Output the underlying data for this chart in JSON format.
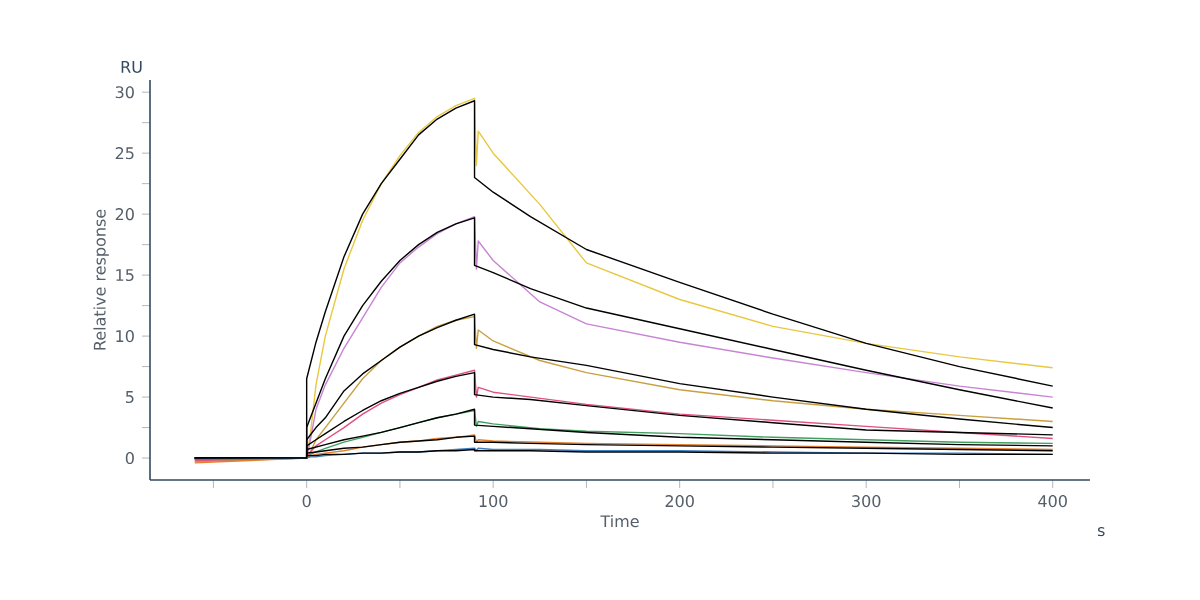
{
  "chart_data": {
    "type": "line",
    "xlabel": "Time",
    "ylabel": "Relative response",
    "annotations": [
      "RU",
      "s"
    ],
    "xlim": [
      -84,
      420
    ],
    "ylim": [
      -1.8,
      31
    ],
    "xticks": [
      {
        "value": -50,
        "label": null
      },
      0,
      {
        "value": 50,
        "label": null
      },
      100,
      {
        "value": 150,
        "label": null
      },
      200,
      {
        "value": 250,
        "label": null
      },
      300,
      {
        "value": 350,
        "label": null
      },
      400
    ],
    "yticks": [
      0,
      {
        "value": 2.5,
        "label": null
      },
      5,
      {
        "value": 7.5,
        "label": null
      },
      10,
      {
        "value": 12.5,
        "label": null
      },
      15,
      {
        "value": 17.5,
        "label": null
      },
      20,
      {
        "value": 22.5,
        "label": null
      },
      25,
      {
        "value": 27.5,
        "label": null
      },
      30
    ],
    "grid": false,
    "marker": "none",
    "line_style": "solid",
    "series": [
      {
        "color": "#e8c840",
        "x": [
          -60,
          0,
          2,
          5,
          10,
          20,
          30,
          40,
          50,
          60,
          70,
          80,
          90,
          91,
          92,
          100,
          125,
          150,
          200,
          250,
          300,
          350,
          400
        ],
        "values": [
          -0.2,
          0,
          2,
          6,
          10,
          15.5,
          19.5,
          22.5,
          24.8,
          26.7,
          28,
          28.9,
          29.5,
          24,
          26.8,
          25,
          20.8,
          16,
          13,
          10.8,
          9.4,
          8.3,
          7.4
        ]
      },
      {
        "color": "#000000",
        "x": [
          -60,
          0,
          0,
          5,
          10,
          20,
          30,
          40,
          50,
          60,
          70,
          80,
          90,
          90,
          100,
          120,
          150,
          200,
          250,
          300,
          350,
          400
        ],
        "values": [
          0,
          0,
          6.5,
          9.5,
          12,
          16.5,
          20,
          22.5,
          24.5,
          26.5,
          27.8,
          28.7,
          29.3,
          23,
          21.8,
          19.8,
          17.1,
          14.4,
          11.8,
          9.4,
          7.5,
          5.9
        ]
      },
      {
        "color": "#c884d4",
        "x": [
          -60,
          0,
          2,
          5,
          10,
          20,
          30,
          40,
          50,
          60,
          70,
          80,
          90,
          91,
          92,
          100,
          125,
          150,
          200,
          250,
          300,
          350,
          400
        ],
        "values": [
          -0.1,
          0,
          1.5,
          4,
          6,
          9,
          11.5,
          14,
          16,
          17.3,
          18.4,
          19.2,
          19.8,
          15.5,
          17.8,
          16.2,
          12.8,
          11,
          9.5,
          8.2,
          7,
          5.9,
          5
        ]
      },
      {
        "color": "#000000",
        "x": [
          -60,
          0,
          0,
          5,
          10,
          20,
          30,
          40,
          50,
          60,
          70,
          80,
          90,
          90,
          100,
          120,
          150,
          200,
          250,
          300,
          350,
          400
        ],
        "values": [
          0,
          0,
          2.5,
          4.5,
          6.5,
          10,
          12.5,
          14.5,
          16.2,
          17.5,
          18.5,
          19.2,
          19.7,
          15.8,
          15.2,
          13.9,
          12.3,
          10.6,
          8.9,
          7.2,
          5.6,
          4.1
        ]
      },
      {
        "color": "#c8a040",
        "x": [
          -60,
          0,
          2,
          5,
          10,
          20,
          30,
          40,
          50,
          60,
          70,
          80,
          90,
          91,
          92,
          100,
          125,
          150,
          200,
          250,
          300,
          350,
          400
        ],
        "values": [
          -0.3,
          0,
          0.5,
          1.5,
          2.5,
          4.5,
          6.5,
          8,
          9.1,
          10,
          10.8,
          11.3,
          11.6,
          9,
          10.5,
          9.6,
          8,
          7,
          5.6,
          4.7,
          4,
          3.5,
          3.0
        ]
      },
      {
        "color": "#000000",
        "x": [
          -60,
          0,
          0,
          5,
          10,
          20,
          30,
          40,
          50,
          60,
          70,
          80,
          90,
          90,
          100,
          120,
          150,
          200,
          250,
          300,
          350,
          400
        ],
        "values": [
          0,
          0,
          1.5,
          2.5,
          3.3,
          5.5,
          6.9,
          8,
          9.1,
          10,
          10.7,
          11.3,
          11.8,
          9.3,
          8.9,
          8.3,
          7.6,
          6.1,
          5.0,
          4.0,
          3.2,
          2.5
        ]
      },
      {
        "color": "#e05080",
        "x": [
          -60,
          0,
          2,
          5,
          10,
          20,
          30,
          40,
          50,
          60,
          70,
          80,
          90,
          91,
          92,
          100,
          125,
          150,
          200,
          250,
          300,
          350,
          400
        ],
        "values": [
          -0.2,
          0,
          0.5,
          1,
          1.5,
          2.5,
          3.6,
          4.5,
          5.2,
          5.8,
          6.4,
          6.8,
          7.2,
          5,
          5.8,
          5.4,
          4.9,
          4.4,
          3.6,
          3.1,
          2.6,
          2.1,
          1.6
        ]
      },
      {
        "color": "#000000",
        "x": [
          -60,
          0,
          0,
          5,
          10,
          20,
          30,
          40,
          50,
          60,
          70,
          80,
          90,
          90,
          100,
          120,
          150,
          200,
          250,
          300,
          350,
          400
        ],
        "values": [
          0,
          0,
          1,
          1.5,
          2,
          3,
          3.9,
          4.7,
          5.3,
          5.8,
          6.3,
          6.7,
          7,
          5.2,
          5.0,
          4.8,
          4.3,
          3.5,
          2.9,
          2.3,
          2.1,
          1.9
        ]
      },
      {
        "color": "#40a060",
        "x": [
          -60,
          0,
          2,
          5,
          10,
          20,
          30,
          40,
          50,
          60,
          70,
          80,
          90,
          91,
          92,
          100,
          125,
          150,
          200,
          250,
          300,
          350,
          400
        ],
        "values": [
          -0.1,
          0,
          0.3,
          0.5,
          0.8,
          1.3,
          1.7,
          2.1,
          2.5,
          2.9,
          3.3,
          3.6,
          3.9,
          2.6,
          3.0,
          2.8,
          2.4,
          2.2,
          2.0,
          1.7,
          1.5,
          1.3,
          1.2
        ]
      },
      {
        "color": "#000000",
        "x": [
          -60,
          0,
          0,
          5,
          10,
          20,
          30,
          40,
          50,
          60,
          70,
          80,
          90,
          90,
          100,
          120,
          150,
          200,
          250,
          300,
          350,
          400
        ],
        "values": [
          0,
          0,
          0.7,
          0.9,
          1.1,
          1.5,
          1.8,
          2.1,
          2.5,
          2.9,
          3.3,
          3.6,
          4.0,
          2.7,
          2.6,
          2.4,
          2.1,
          1.7,
          1.5,
          1.3,
          1.1,
          1.0
        ]
      },
      {
        "color": "#e08030",
        "x": [
          -60,
          0,
          2,
          5,
          10,
          20,
          30,
          40,
          50,
          60,
          70,
          80,
          90,
          91,
          92,
          100,
          125,
          150,
          200,
          250,
          300,
          350,
          400
        ],
        "values": [
          -0.4,
          0,
          0.2,
          0.3,
          0.4,
          0.6,
          0.9,
          1.1,
          1.3,
          1.4,
          1.6,
          1.7,
          1.9,
          1.3,
          1.5,
          1.4,
          1.3,
          1.2,
          1.1,
          1.0,
          0.9,
          0.8,
          0.7
        ]
      },
      {
        "color": "#000000",
        "x": [
          -60,
          0,
          0,
          5,
          10,
          20,
          30,
          40,
          50,
          60,
          70,
          80,
          90,
          90,
          100,
          120,
          150,
          200,
          250,
          300,
          350,
          400
        ],
        "values": [
          0,
          0,
          0.4,
          0.5,
          0.6,
          0.8,
          0.9,
          1.1,
          1.3,
          1.4,
          1.5,
          1.7,
          1.8,
          1.3,
          1.3,
          1.2,
          1.1,
          1.0,
          0.9,
          0.8,
          0.7,
          0.6
        ]
      },
      {
        "color": "#4080c0",
        "x": [
          -60,
          0,
          2,
          5,
          10,
          20,
          30,
          40,
          50,
          60,
          70,
          80,
          90,
          91,
          92,
          100,
          125,
          150,
          200,
          250,
          300,
          350,
          400
        ],
        "values": [
          -0.1,
          0,
          0.1,
          0.1,
          0.2,
          0.3,
          0.4,
          0.4,
          0.5,
          0.5,
          0.6,
          0.7,
          0.8,
          0.6,
          0.8,
          0.7,
          0.7,
          0.6,
          0.6,
          0.5,
          0.4,
          0.4,
          0.3
        ]
      },
      {
        "color": "#000000",
        "x": [
          -60,
          0,
          0,
          5,
          10,
          20,
          30,
          40,
          50,
          60,
          70,
          80,
          90,
          90,
          100,
          120,
          150,
          200,
          250,
          300,
          350,
          400
        ],
        "values": [
          0,
          0,
          0.2,
          0.2,
          0.3,
          0.3,
          0.4,
          0.4,
          0.5,
          0.5,
          0.6,
          0.6,
          0.7,
          0.6,
          0.6,
          0.6,
          0.5,
          0.5,
          0.4,
          0.4,
          0.3,
          0.3
        ]
      }
    ]
  }
}
